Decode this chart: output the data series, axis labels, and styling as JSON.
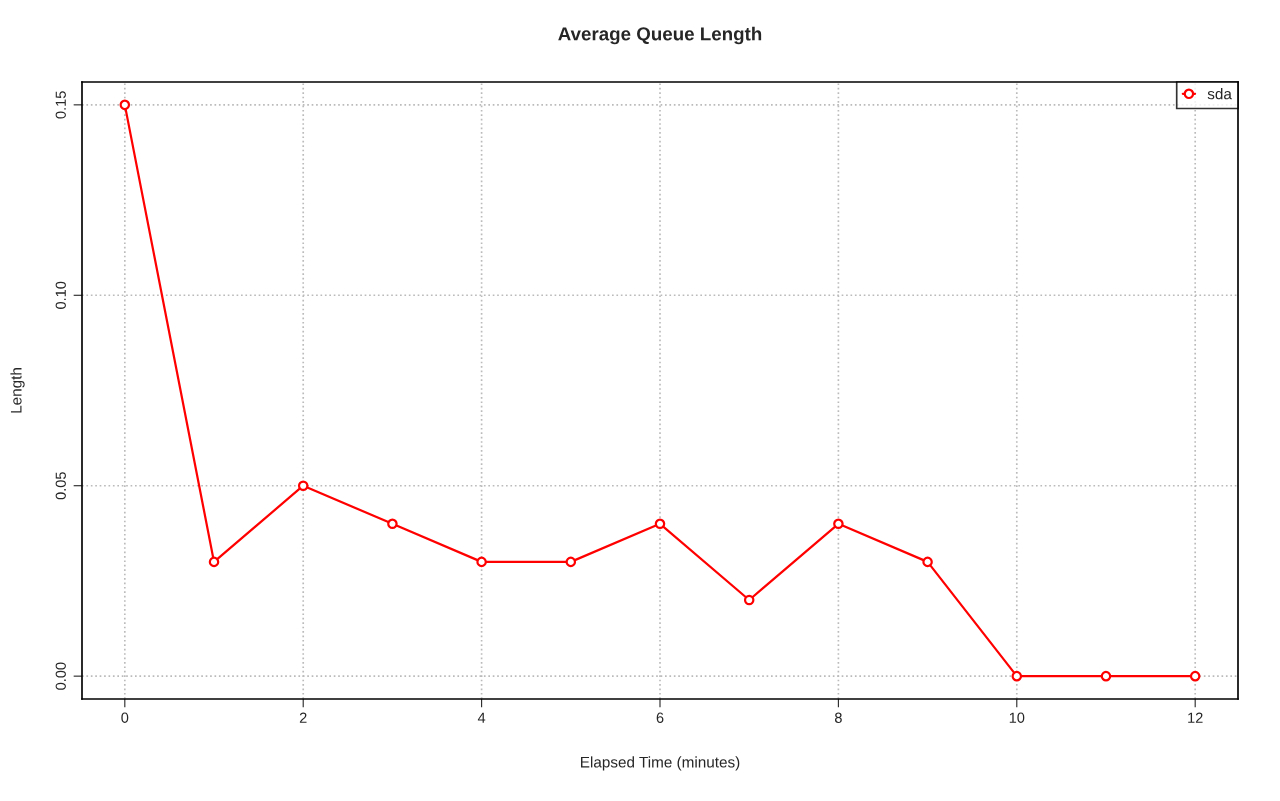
{
  "chart_data": {
    "type": "line",
    "title": "Average Queue Length",
    "xlabel": "Elapsed Time (minutes)",
    "ylabel": "Length",
    "x": [
      0,
      1,
      2,
      3,
      4,
      5,
      6,
      7,
      8,
      9,
      10,
      11,
      12
    ],
    "series": [
      {
        "name": "sda",
        "color": "#ff0000",
        "values": [
          0.15,
          0.03,
          0.05,
          0.04,
          0.03,
          0.03,
          0.04,
          0.02,
          0.04,
          0.03,
          0,
          0,
          0
        ]
      }
    ],
    "xlim": [
      -0.48,
      12.48
    ],
    "xticks": [
      0,
      2,
      4,
      6,
      8,
      10,
      12
    ],
    "ylim": [
      -0.006,
      0.156
    ],
    "yticks": [
      {
        "value": 0,
        "label": "0.00"
      },
      {
        "value": 0.05,
        "label": "0.05"
      },
      {
        "value": 0.1,
        "label": "0.10"
      },
      {
        "value": 0.15,
        "label": "0.15"
      }
    ],
    "grid": true,
    "legend": "top right",
    "marker": "circle",
    "line_style": "solid"
  }
}
